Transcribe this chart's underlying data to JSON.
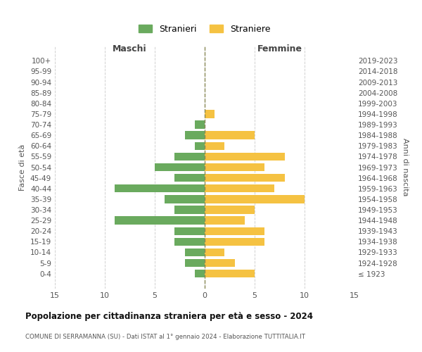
{
  "age_groups": [
    "100+",
    "95-99",
    "90-94",
    "85-89",
    "80-84",
    "75-79",
    "70-74",
    "65-69",
    "60-64",
    "55-59",
    "50-54",
    "45-49",
    "40-44",
    "35-39",
    "30-34",
    "25-29",
    "20-24",
    "15-19",
    "10-14",
    "5-9",
    "0-4"
  ],
  "birth_years": [
    "≤ 1923",
    "1924-1928",
    "1929-1933",
    "1934-1938",
    "1939-1943",
    "1944-1948",
    "1949-1953",
    "1954-1958",
    "1959-1963",
    "1964-1968",
    "1969-1973",
    "1974-1978",
    "1979-1983",
    "1984-1988",
    "1989-1993",
    "1994-1998",
    "1999-2003",
    "2004-2008",
    "2009-2013",
    "2014-2018",
    "2019-2023"
  ],
  "males": [
    0,
    0,
    0,
    0,
    0,
    0,
    1,
    2,
    1,
    3,
    5,
    3,
    9,
    4,
    3,
    9,
    3,
    3,
    2,
    2,
    1
  ],
  "females": [
    0,
    0,
    0,
    0,
    0,
    1,
    0,
    5,
    2,
    8,
    6,
    8,
    7,
    10,
    5,
    4,
    6,
    6,
    2,
    3,
    5
  ],
  "male_color": "#6aaa5e",
  "female_color": "#f5c242",
  "background_color": "#ffffff",
  "grid_color": "#cccccc",
  "title": "Popolazione per cittadinanza straniera per età e sesso - 2024",
  "subtitle": "COMUNE DI SERRAMANNA (SU) - Dati ISTAT al 1° gennaio 2024 - Elaborazione TUTTITALIA.IT",
  "xlabel_left": "Maschi",
  "xlabel_right": "Femmine",
  "ylabel_left": "Fasce di età",
  "ylabel_right": "Anni di nascita",
  "legend_male": "Stranieri",
  "legend_female": "Straniere",
  "xlim": 15
}
